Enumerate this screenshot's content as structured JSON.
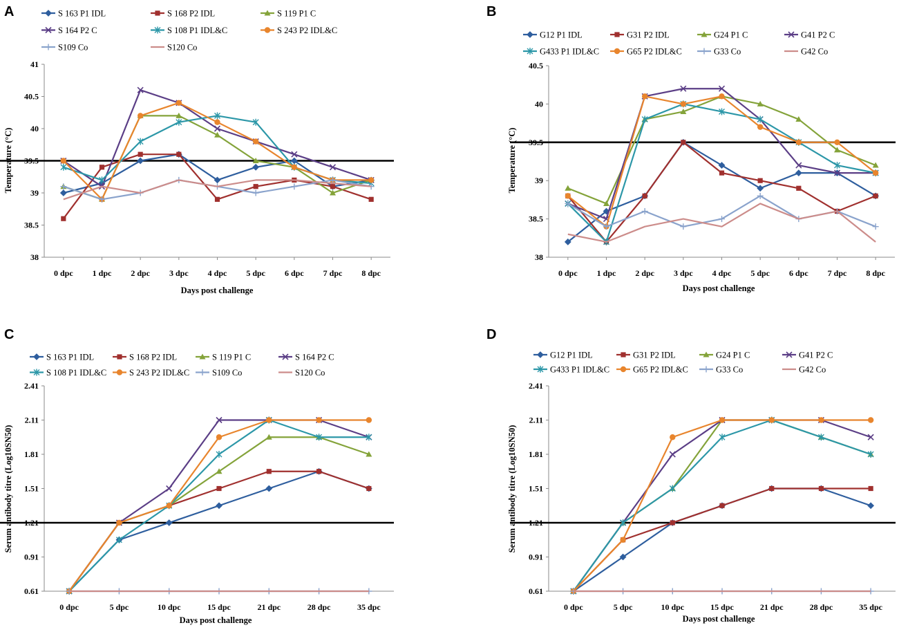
{
  "figure": {
    "panels_order": [
      "A",
      "B",
      "C",
      "D"
    ]
  },
  "styles": {
    "series_1": {
      "color": "#2E5E9E",
      "marker": "diamond"
    },
    "series_2": {
      "color": "#A0302E",
      "marker": "square"
    },
    "series_3": {
      "color": "#84A33A",
      "marker": "triangle"
    },
    "series_4": {
      "color": "#5B3E86",
      "marker": "x"
    },
    "series_5": {
      "color": "#2C97A8",
      "marker": "asterisk"
    },
    "series_6": {
      "color": "#E8852D",
      "marker": "circle"
    },
    "series_7": {
      "color": "#8AA3CC",
      "marker": "plus"
    },
    "series_8": {
      "color": "#CC8C8A",
      "marker": "none"
    },
    "threshold_color": "#000000"
  },
  "chart_data": [
    {
      "panel": "A",
      "type": "line",
      "xlabel": "Days post challenge",
      "ylabel": "Temperature (°C)",
      "ylim": [
        38,
        41
      ],
      "yticks": [
        "38",
        "38.5",
        "39",
        "39.5",
        "40",
        "40.5",
        "41"
      ],
      "categories": [
        "0 dpc",
        "1 dpc",
        "2 dpc",
        "3 dpc",
        "4 dpc",
        "5 dpc",
        "6 dpc",
        "7 dpc",
        "8 dpc"
      ],
      "threshold": 39.5,
      "series": [
        {
          "name": "S 163 P1 IDL",
          "style": "series_1",
          "values": [
            39.0,
            39.15,
            39.5,
            39.6,
            39.2,
            39.4,
            39.5,
            39.1,
            39.2
          ]
        },
        {
          "name": "S 168 P2 IDL",
          "style": "series_2",
          "values": [
            38.6,
            39.4,
            39.6,
            39.6,
            38.9,
            39.1,
            39.2,
            39.1,
            38.9
          ]
        },
        {
          "name": "S 119 P1 C",
          "style": "series_3",
          "values": [
            39.1,
            38.9,
            40.2,
            40.2,
            39.9,
            39.5,
            39.4,
            39.0,
            39.2
          ]
        },
        {
          "name": "S 164 P2 C",
          "style": "series_4",
          "values": [
            39.5,
            39.1,
            40.6,
            40.4,
            40.0,
            39.8,
            39.6,
            39.4,
            39.2
          ]
        },
        {
          "name": "S 108 P1 IDL&C",
          "style": "series_5",
          "values": [
            39.4,
            39.2,
            39.8,
            40.1,
            40.2,
            40.1,
            39.4,
            39.2,
            39.15
          ]
        },
        {
          "name": "S 243 P2 IDL&C",
          "style": "series_6",
          "values": [
            39.5,
            38.9,
            40.2,
            40.4,
            40.1,
            39.8,
            39.4,
            39.2,
            39.2
          ]
        },
        {
          "name": "S109 Co",
          "style": "series_7",
          "values": [
            39.1,
            38.9,
            39.0,
            39.2,
            39.1,
            39.0,
            39.1,
            39.2,
            39.1
          ]
        },
        {
          "name": "S120 Co",
          "style": "series_8",
          "values": [
            38.9,
            39.1,
            39.0,
            39.2,
            39.1,
            39.2,
            39.2,
            39.15,
            39.1
          ]
        }
      ]
    },
    {
      "panel": "B",
      "type": "line",
      "xlabel": "Days post challenge",
      "ylabel": "Temperature (°C)",
      "ylim": [
        38,
        40.5
      ],
      "yticks": [
        "38",
        "38.5",
        "39",
        "39.5",
        "40",
        "40.5"
      ],
      "categories": [
        "0 dpc",
        "1 dpc",
        "2 dpc",
        "3 dpc",
        "4 dpc",
        "5 dpc",
        "6 dpc",
        "7 dpc",
        "8 dpc"
      ],
      "threshold": 39.5,
      "series": [
        {
          "name": "G12 P1 IDL",
          "style": "series_1",
          "values": [
            38.2,
            38.6,
            38.8,
            39.5,
            39.2,
            38.9,
            39.1,
            39.1,
            38.8
          ]
        },
        {
          "name": "G31 P2 IDL",
          "style": "series_2",
          "values": [
            38.8,
            38.2,
            38.8,
            39.5,
            39.1,
            39.0,
            38.9,
            38.6,
            38.8
          ]
        },
        {
          "name": "G24 P1 C",
          "style": "series_3",
          "values": [
            38.9,
            38.7,
            39.8,
            39.9,
            40.1,
            40.0,
            39.8,
            39.4,
            39.2
          ]
        },
        {
          "name": "G41 P2 C",
          "style": "series_4",
          "values": [
            38.7,
            38.5,
            40.1,
            40.2,
            40.2,
            39.8,
            39.2,
            39.1,
            39.1
          ]
        },
        {
          "name": "G433 P1 IDL&C",
          "style": "series_5",
          "values": [
            38.7,
            38.2,
            39.8,
            40.0,
            39.9,
            39.8,
            39.5,
            39.2,
            39.1
          ]
        },
        {
          "name": "G65 P2 IDL&C",
          "style": "series_6",
          "values": [
            38.8,
            38.4,
            40.1,
            40.0,
            40.1,
            39.7,
            39.5,
            39.5,
            39.1
          ]
        },
        {
          "name": "G33 Co",
          "style": "series_7",
          "values": [
            38.7,
            38.4,
            38.6,
            38.4,
            38.5,
            38.8,
            38.5,
            38.6,
            38.4
          ]
        },
        {
          "name": "G42 Co",
          "style": "series_8",
          "values": [
            38.3,
            38.2,
            38.4,
            38.5,
            38.4,
            38.7,
            38.5,
            38.6,
            38.2
          ]
        }
      ]
    },
    {
      "panel": "C",
      "type": "line",
      "xlabel": "Days post challenge",
      "ylabel": "Serum antibody titre (Log10SN50)",
      "ylim": [
        0.61,
        2.41
      ],
      "yticks": [
        "0.61",
        "0.91",
        "1.21",
        "1.51",
        "1.81",
        "2.11",
        "2.41"
      ],
      "categories": [
        "0 dpc",
        "5 dpc",
        "10 dpc",
        "15 dpc",
        "21 dpc",
        "28 dpc",
        "35 dpc"
      ],
      "threshold": 1.21,
      "series": [
        {
          "name": "S 163 P1 IDL",
          "style": "series_1",
          "values": [
            0.61,
            1.06,
            1.21,
            1.36,
            1.51,
            1.66,
            1.51
          ]
        },
        {
          "name": "S 168 P2 IDL",
          "style": "series_2",
          "values": [
            0.61,
            1.21,
            1.36,
            1.51,
            1.66,
            1.66,
            1.51
          ]
        },
        {
          "name": "S 119 P1 C",
          "style": "series_3",
          "values": [
            0.61,
            1.21,
            1.36,
            1.66,
            1.96,
            1.96,
            1.81
          ]
        },
        {
          "name": "S 164 P2 C",
          "style": "series_4",
          "values": [
            0.61,
            1.21,
            1.51,
            2.11,
            2.11,
            2.11,
            1.96
          ]
        },
        {
          "name": "S 108 P1 IDL&C",
          "style": "series_5",
          "values": [
            0.61,
            1.06,
            1.36,
            1.81,
            2.11,
            1.96,
            1.96
          ]
        },
        {
          "name": "S 243 P2 IDL&C",
          "style": "series_6",
          "values": [
            0.61,
            1.21,
            1.36,
            1.96,
            2.11,
            2.11,
            2.11
          ]
        },
        {
          "name": "S109 Co",
          "style": "series_7",
          "values": [
            0.61,
            0.61,
            0.61,
            0.61,
            0.61,
            0.61,
            0.61
          ]
        },
        {
          "name": "S120 Co",
          "style": "series_8",
          "values": [
            0.61,
            0.61,
            0.61,
            0.61,
            0.61,
            0.61,
            0.61
          ]
        }
      ]
    },
    {
      "panel": "D",
      "type": "line",
      "xlabel": "Days post challenge",
      "ylabel": "Serum antibody titre (Log10SN50)",
      "ylim": [
        0.61,
        2.41
      ],
      "yticks": [
        "0.61",
        "0.91",
        "1.21",
        "1.51",
        "1.81",
        "2.11",
        "2.41"
      ],
      "categories": [
        "0 dpc",
        "5 dpc",
        "10 dpc",
        "15 dpc",
        "21 dpc",
        "28 dpc",
        "35 dpc"
      ],
      "threshold": 1.21,
      "series": [
        {
          "name": "G12 P1 IDL",
          "style": "series_1",
          "values": [
            0.61,
            0.91,
            1.21,
            1.36,
            1.51,
            1.51,
            1.36
          ]
        },
        {
          "name": "G31 P2 IDL",
          "style": "series_2",
          "values": [
            0.61,
            1.06,
            1.21,
            1.36,
            1.51,
            1.51,
            1.51
          ]
        },
        {
          "name": "G24 P1 C",
          "style": "series_3",
          "values": [
            0.61,
            1.21,
            1.51,
            2.11,
            2.11,
            1.96,
            1.81
          ]
        },
        {
          "name": "G41 P2 C",
          "style": "series_4",
          "values": [
            0.61,
            1.21,
            1.81,
            2.11,
            2.11,
            2.11,
            1.96
          ]
        },
        {
          "name": "G433 P1 IDL&C",
          "style": "series_5",
          "values": [
            0.61,
            1.21,
            1.51,
            1.96,
            2.11,
            1.96,
            1.81
          ]
        },
        {
          "name": "G65 P2 IDL&C",
          "style": "series_6",
          "values": [
            0.61,
            1.06,
            1.96,
            2.11,
            2.11,
            2.11,
            2.11
          ]
        },
        {
          "name": "G33 Co",
          "style": "series_7",
          "values": [
            0.61,
            0.61,
            0.61,
            0.61,
            0.61,
            0.61,
            0.61
          ]
        },
        {
          "name": "G42 Co",
          "style": "series_8",
          "values": [
            0.61,
            0.61,
            0.61,
            0.61,
            0.61,
            0.61,
            0.61
          ]
        }
      ]
    }
  ]
}
